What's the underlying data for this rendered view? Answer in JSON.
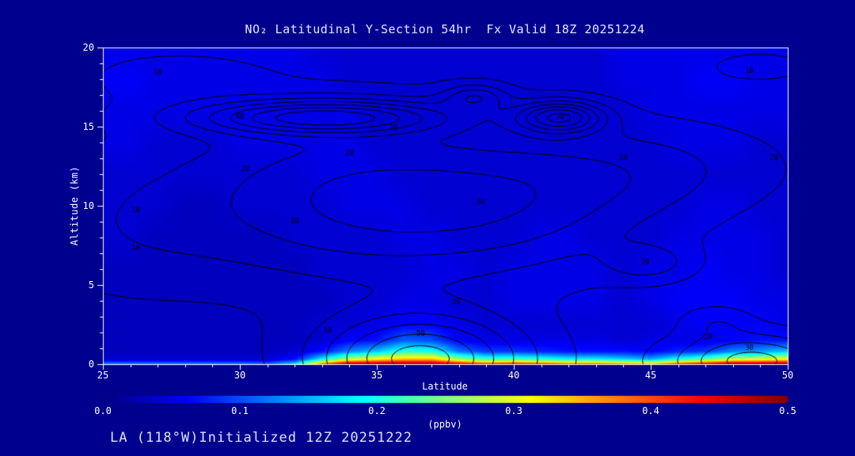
{
  "page": {
    "footer": "LA (118°W)Initialized 12Z 20251222"
  },
  "colors": {
    "background": "#00008F",
    "axis_text": "#FFFFFF",
    "title_text": "#E6E6FA",
    "footer_text": "#E0E0FF",
    "frame": "#FFFFFF",
    "contour_line": "#000000"
  },
  "chart_data": {
    "type": "heatmap",
    "title": "NO₂ Latitudinal Y-Section 54hr  Fx Valid 18Z 20251224",
    "xlabel": "Latitude",
    "ylabel": "Altitude (km)",
    "xlim": [
      25,
      50
    ],
    "ylim": [
      0,
      20
    ],
    "xticks": [
      25,
      30,
      35,
      40,
      45,
      50
    ],
    "yticks": [
      0,
      5,
      10,
      15,
      20
    ],
    "x_minor_step": 1,
    "y_minor_step": 1,
    "colorbar": {
      "label": "(ppbv)",
      "min": 0.0,
      "max": 0.5,
      "ticks": [
        0.0,
        0.1,
        0.2,
        0.3,
        0.4,
        0.5
      ],
      "tick_labels": [
        "0.0",
        "0.1",
        "0.2",
        "0.3",
        "0.4",
        "0.5"
      ],
      "colormap": "jet"
    },
    "grid": {
      "units": "ppbv",
      "x": [
        25,
        26,
        27,
        28,
        29,
        30,
        31,
        32,
        33,
        34,
        35,
        36,
        37,
        38,
        39,
        40,
        41,
        42,
        43,
        44,
        45,
        46,
        47,
        48,
        49,
        50
      ],
      "y": [
        0,
        0.3,
        0.8,
        1.5,
        2.5,
        4,
        6,
        8,
        10,
        12,
        14,
        16,
        18,
        20
      ],
      "values": [
        [
          0.13,
          0.13,
          0.13,
          0.13,
          0.13,
          0.13,
          0.12,
          0.18,
          0.4,
          0.5,
          0.5,
          0.5,
          0.5,
          0.46,
          0.42,
          0.44,
          0.42,
          0.4,
          0.4,
          0.38,
          0.36,
          0.42,
          0.46,
          0.5,
          0.5,
          0.5
        ],
        [
          0.04,
          0.04,
          0.04,
          0.04,
          0.04,
          0.04,
          0.04,
          0.07,
          0.19,
          0.29,
          0.32,
          0.35,
          0.35,
          0.27,
          0.22,
          0.23,
          0.21,
          0.19,
          0.19,
          0.17,
          0.15,
          0.2,
          0.24,
          0.29,
          0.3,
          0.32
        ],
        [
          0.03,
          0.03,
          0.03,
          0.03,
          0.03,
          0.03,
          0.03,
          0.04,
          0.07,
          0.13,
          0.16,
          0.21,
          0.2,
          0.12,
          0.09,
          0.09,
          0.08,
          0.07,
          0.07,
          0.07,
          0.06,
          0.08,
          0.09,
          0.13,
          0.14,
          0.16
        ],
        [
          0.03,
          0.03,
          0.03,
          0.03,
          0.03,
          0.03,
          0.03,
          0.03,
          0.04,
          0.06,
          0.07,
          0.11,
          0.1,
          0.06,
          0.05,
          0.05,
          0.05,
          0.05,
          0.05,
          0.04,
          0.05,
          0.05,
          0.05,
          0.06,
          0.07,
          0.07
        ],
        [
          0.03,
          0.03,
          0.03,
          0.03,
          0.03,
          0.03,
          0.03,
          0.03,
          0.04,
          0.04,
          0.05,
          0.06,
          0.06,
          0.05,
          0.04,
          0.04,
          0.04,
          0.04,
          0.04,
          0.04,
          0.04,
          0.05,
          0.06,
          0.06,
          0.06,
          0.05
        ],
        [
          0.03,
          0.03,
          0.03,
          0.03,
          0.03,
          0.03,
          0.03,
          0.03,
          0.03,
          0.04,
          0.04,
          0.05,
          0.05,
          0.04,
          0.04,
          0.05,
          0.05,
          0.05,
          0.05,
          0.04,
          0.05,
          0.06,
          0.06,
          0.06,
          0.05,
          0.05
        ],
        [
          0.03,
          0.03,
          0.03,
          0.03,
          0.03,
          0.03,
          0.03,
          0.03,
          0.04,
          0.04,
          0.04,
          0.04,
          0.05,
          0.05,
          0.04,
          0.05,
          0.05,
          0.05,
          0.05,
          0.04,
          0.05,
          0.05,
          0.06,
          0.05,
          0.05,
          0.04
        ],
        [
          0.04,
          0.04,
          0.03,
          0.03,
          0.03,
          0.03,
          0.03,
          0.04,
          0.04,
          0.04,
          0.04,
          0.05,
          0.05,
          0.04,
          0.04,
          0.04,
          0.05,
          0.05,
          0.04,
          0.04,
          0.04,
          0.05,
          0.05,
          0.05,
          0.05,
          0.04
        ],
        [
          0.04,
          0.04,
          0.04,
          0.03,
          0.03,
          0.04,
          0.04,
          0.04,
          0.04,
          0.05,
          0.05,
          0.05,
          0.04,
          0.04,
          0.04,
          0.04,
          0.04,
          0.04,
          0.04,
          0.04,
          0.04,
          0.04,
          0.05,
          0.05,
          0.04,
          0.04
        ],
        [
          0.04,
          0.04,
          0.04,
          0.04,
          0.04,
          0.04,
          0.04,
          0.04,
          0.05,
          0.05,
          0.05,
          0.04,
          0.04,
          0.04,
          0.04,
          0.04,
          0.04,
          0.04,
          0.04,
          0.04,
          0.04,
          0.04,
          0.04,
          0.04,
          0.04,
          0.04
        ],
        [
          0.05,
          0.05,
          0.04,
          0.04,
          0.04,
          0.05,
          0.05,
          0.05,
          0.05,
          0.05,
          0.04,
          0.04,
          0.04,
          0.04,
          0.04,
          0.04,
          0.04,
          0.04,
          0.04,
          0.04,
          0.04,
          0.05,
          0.05,
          0.05,
          0.04,
          0.04
        ],
        [
          0.05,
          0.05,
          0.05,
          0.05,
          0.05,
          0.05,
          0.05,
          0.05,
          0.05,
          0.05,
          0.04,
          0.04,
          0.04,
          0.04,
          0.04,
          0.04,
          0.04,
          0.04,
          0.04,
          0.04,
          0.05,
          0.05,
          0.05,
          0.05,
          0.05,
          0.05
        ],
        [
          0.06,
          0.06,
          0.05,
          0.05,
          0.05,
          0.05,
          0.05,
          0.05,
          0.05,
          0.04,
          0.04,
          0.04,
          0.04,
          0.04,
          0.04,
          0.04,
          0.04,
          0.04,
          0.04,
          0.05,
          0.05,
          0.05,
          0.06,
          0.06,
          0.05,
          0.05
        ],
        [
          0.05,
          0.05,
          0.05,
          0.05,
          0.05,
          0.05,
          0.05,
          0.05,
          0.04,
          0.04,
          0.04,
          0.04,
          0.04,
          0.04,
          0.04,
          0.04,
          0.04,
          0.04,
          0.04,
          0.05,
          0.05,
          0.05,
          0.05,
          0.05,
          0.05,
          0.05
        ]
      ]
    },
    "contours": {
      "levels": [
        10,
        20,
        30,
        40,
        50,
        60,
        70
      ],
      "line_color": "#000000",
      "field_blobs": {
        "base": 4,
        "blobs": [
          {
            "lat": 33.5,
            "alt": 10.5,
            "amp": 32,
            "slat": 4.5,
            "salt": 3.8
          },
          {
            "lat": 40.0,
            "alt": 10.0,
            "amp": 24,
            "slat": 4.0,
            "salt": 3.0
          },
          {
            "lat": 33.0,
            "alt": 15.6,
            "amp": 62,
            "slat": 3.2,
            "salt": 0.75
          },
          {
            "lat": 41.7,
            "alt": 15.6,
            "amp": 60,
            "slat": 1.1,
            "salt": 0.7
          },
          {
            "lat": 38.6,
            "alt": 16.9,
            "amp": 28,
            "slat": 0.8,
            "salt": 0.55
          },
          {
            "lat": 45.0,
            "alt": 12.5,
            "amp": 14,
            "slat": 3.5,
            "salt": 2.0
          },
          {
            "lat": 44.9,
            "alt": 6.4,
            "amp": 18,
            "slat": 1.1,
            "salt": 0.8
          },
          {
            "lat": 36.6,
            "alt": 0.3,
            "amp": 60,
            "slat": 2.6,
            "salt": 2.0
          },
          {
            "lat": 48.7,
            "alt": 0.2,
            "amp": 40,
            "slat": 2.0,
            "salt": 1.2
          },
          {
            "lat": 47.4,
            "alt": 2.7,
            "amp": 12,
            "slat": 0.9,
            "salt": 0.7
          },
          {
            "lat": 25.5,
            "alt": 8.5,
            "amp": 10,
            "slat": 2.8,
            "salt": 3.2
          },
          {
            "lat": 27.5,
            "alt": 18.2,
            "amp": 9,
            "slat": 2.5,
            "salt": 1.2
          },
          {
            "lat": 49.0,
            "alt": 18.8,
            "amp": 8,
            "slat": 2.0,
            "salt": 1.0
          }
        ]
      },
      "labels": [
        {
          "text": "10",
          "lat": 27.0,
          "alt": 18.4
        },
        {
          "text": "10",
          "lat": 48.6,
          "alt": 18.5
        },
        {
          "text": "20",
          "lat": 35.6,
          "alt": 14.9
        },
        {
          "text": "40",
          "lat": 30.0,
          "alt": 15.6
        },
        {
          "text": "70",
          "lat": 41.7,
          "alt": 15.6
        },
        {
          "text": "20",
          "lat": 34.0,
          "alt": 13.3
        },
        {
          "text": "30",
          "lat": 38.8,
          "alt": 10.2
        },
        {
          "text": "20",
          "lat": 30.2,
          "alt": 12.3
        },
        {
          "text": "10",
          "lat": 26.2,
          "alt": 9.7
        },
        {
          "text": "30",
          "lat": 32.0,
          "alt": 9.0
        },
        {
          "text": "10",
          "lat": 26.2,
          "alt": 7.3
        },
        {
          "text": "20",
          "lat": 44.8,
          "alt": 6.4
        },
        {
          "text": "10",
          "lat": 44.0,
          "alt": 13.0
        },
        {
          "text": "20",
          "lat": 49.5,
          "alt": 13.0
        },
        {
          "text": "50",
          "lat": 36.6,
          "alt": 1.9
        },
        {
          "text": "10",
          "lat": 37.9,
          "alt": 3.9
        },
        {
          "text": "10",
          "lat": 33.2,
          "alt": 2.1
        },
        {
          "text": "20",
          "lat": 47.1,
          "alt": 1.7
        },
        {
          "text": "30",
          "lat": 48.6,
          "alt": 1.0
        }
      ]
    }
  }
}
